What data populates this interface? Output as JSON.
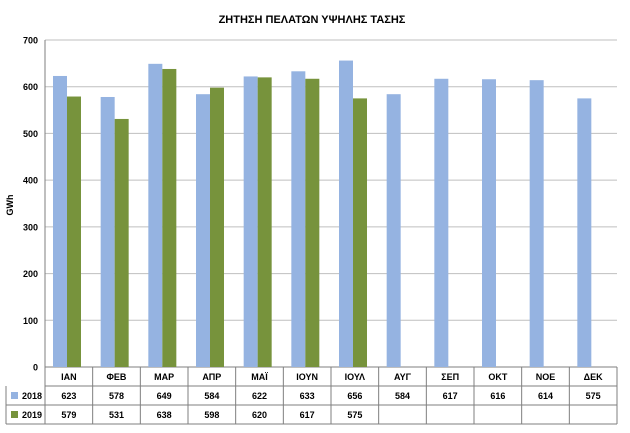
{
  "chart_data": {
    "type": "bar",
    "title": "ΖΗΤΗΣΗ ΠΕΛΑΤΩΝ ΥΨΗΛΗΣ ΤΑΣΗΣ",
    "ylabel": "GWh",
    "xlabel": "",
    "ylim": [
      0,
      700
    ],
    "yticks": [
      0,
      100,
      200,
      300,
      400,
      500,
      600,
      700
    ],
    "grid": "horizontal",
    "legend": "data-table",
    "categories": [
      "ΙΑΝ",
      "ΦΕΒ",
      "ΜΑΡ",
      "ΑΠΡ",
      "ΜΑΪ",
      "ΙΟΥΝ",
      "ΙΟΥΛ",
      "ΑΥΓ",
      "ΣΕΠ",
      "ΟΚΤ",
      "ΝΟΕ",
      "ΔΕΚ"
    ],
    "series": [
      {
        "name": "2018",
        "color": "#95b3e1",
        "values": [
          623,
          578,
          649,
          584,
          622,
          633,
          656,
          584,
          617,
          616,
          614,
          575
        ]
      },
      {
        "name": "2019",
        "color": "#77933c",
        "values": [
          579,
          531,
          638,
          598,
          620,
          617,
          575,
          null,
          null,
          null,
          null,
          null
        ]
      }
    ]
  }
}
